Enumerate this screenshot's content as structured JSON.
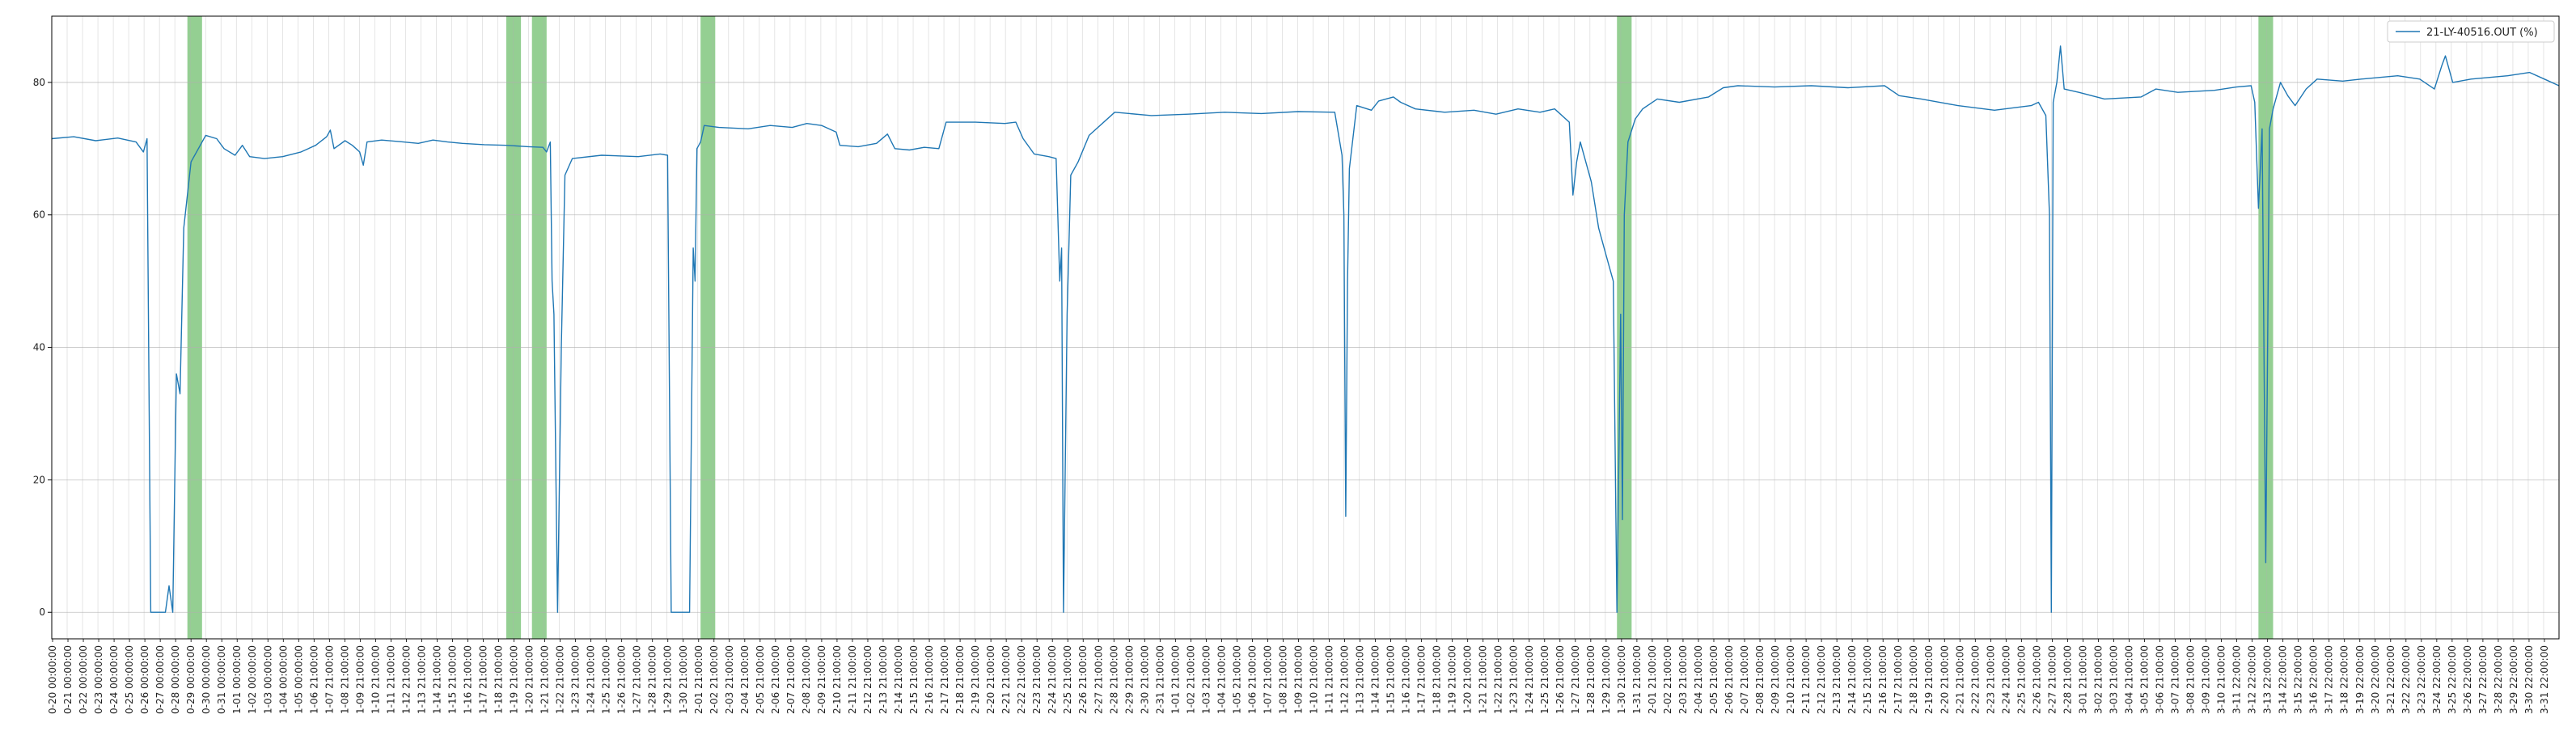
{
  "chart_data": {
    "type": "line",
    "title": "",
    "xlabel": "",
    "ylabel": "",
    "ylim": [
      -4,
      90
    ],
    "yticks": [
      0,
      20,
      40,
      60,
      80
    ],
    "grid": true,
    "legend_position": "top-right",
    "colors": {
      "line": "#1f77b4",
      "shade": "#4daf4a",
      "grid": "#b0b0b0",
      "axis": "#000000"
    },
    "series": [
      {
        "name": "21-LY-40516.OUT (%)",
        "points": [
          [
            0,
            71.5
          ],
          [
            6,
            71.8
          ],
          [
            12,
            71.2
          ],
          [
            18,
            71.6
          ],
          [
            23,
            71.0
          ],
          [
            25,
            69.5
          ],
          [
            26,
            71.5
          ],
          [
            27,
            0
          ],
          [
            31,
            0
          ],
          [
            32,
            4
          ],
          [
            33,
            0
          ],
          [
            34,
            36
          ],
          [
            35,
            33
          ],
          [
            36,
            58
          ],
          [
            38,
            68
          ],
          [
            40,
            70
          ],
          [
            42,
            72
          ],
          [
            45,
            71.5
          ],
          [
            47,
            70
          ],
          [
            50,
            69
          ],
          [
            52,
            70.5
          ],
          [
            54,
            68.8
          ],
          [
            58,
            68.5
          ],
          [
            63,
            68.8
          ],
          [
            68,
            69.5
          ],
          [
            72,
            70.5
          ],
          [
            75,
            71.8
          ],
          [
            76,
            72.8
          ],
          [
            77,
            70
          ],
          [
            80,
            71.2
          ],
          [
            82,
            70.5
          ],
          [
            84,
            69.5
          ],
          [
            85,
            67.5
          ],
          [
            86,
            71
          ],
          [
            90,
            71.3
          ],
          [
            96,
            71.0
          ],
          [
            100,
            70.8
          ],
          [
            104,
            71.3
          ],
          [
            108,
            71.0
          ],
          [
            112,
            70.8
          ],
          [
            118,
            70.6
          ],
          [
            124,
            70.5
          ],
          [
            130,
            70.3
          ],
          [
            134,
            70.2
          ],
          [
            135,
            69.5
          ],
          [
            136,
            71
          ],
          [
            136.5,
            50
          ],
          [
            137,
            45
          ],
          [
            138,
            0
          ],
          [
            139,
            40
          ],
          [
            140,
            66
          ],
          [
            142,
            68.5
          ],
          [
            150,
            69
          ],
          [
            160,
            68.8
          ],
          [
            166,
            69.2
          ],
          [
            168,
            69.0
          ],
          [
            169,
            0
          ],
          [
            174,
            0
          ],
          [
            175,
            55
          ],
          [
            175.5,
            50
          ],
          [
            176,
            70
          ],
          [
            177,
            71
          ],
          [
            178,
            73.5
          ],
          [
            182,
            73.2
          ],
          [
            190,
            73.0
          ],
          [
            196,
            73.5
          ],
          [
            202,
            73.2
          ],
          [
            206,
            73.8
          ],
          [
            210,
            73.5
          ],
          [
            214,
            72.5
          ],
          [
            215,
            70.5
          ],
          [
            220,
            70.3
          ],
          [
            225,
            70.8
          ],
          [
            228,
            72.2
          ],
          [
            230,
            70
          ],
          [
            234,
            69.8
          ],
          [
            238,
            70.2
          ],
          [
            242,
            70.0
          ],
          [
            244,
            74.0
          ],
          [
            252,
            74.0
          ],
          [
            260,
            73.8
          ],
          [
            263,
            74
          ],
          [
            265,
            71.5
          ],
          [
            268,
            69.2
          ],
          [
            272,
            68.8
          ],
          [
            274,
            68.5
          ],
          [
            275,
            50
          ],
          [
            275.5,
            55
          ],
          [
            276,
            0
          ],
          [
            277,
            45
          ],
          [
            278,
            66
          ],
          [
            280,
            68
          ],
          [
            283,
            72
          ],
          [
            290,
            75.5
          ],
          [
            300,
            75.0
          ],
          [
            310,
            75.2
          ],
          [
            320,
            75.5
          ],
          [
            330,
            75.3
          ],
          [
            340,
            75.6
          ],
          [
            350,
            75.5
          ],
          [
            352,
            69
          ],
          [
            352.5,
            60
          ],
          [
            353,
            14.5
          ],
          [
            353.5,
            50
          ],
          [
            354,
            67
          ],
          [
            356,
            76.5
          ],
          [
            360,
            75.8
          ],
          [
            362,
            77.2
          ],
          [
            366,
            77.8
          ],
          [
            368,
            77
          ],
          [
            372,
            76
          ],
          [
            380,
            75.5
          ],
          [
            388,
            75.8
          ],
          [
            394,
            75.2
          ],
          [
            400,
            76
          ],
          [
            406,
            75.5
          ],
          [
            410,
            76.0
          ],
          [
            414,
            74.0
          ],
          [
            415,
            63
          ],
          [
            416,
            68
          ],
          [
            417,
            71
          ],
          [
            420,
            65
          ],
          [
            422,
            58
          ],
          [
            424,
            54
          ],
          [
            426,
            50
          ],
          [
            427,
            0
          ],
          [
            428,
            45
          ],
          [
            428.5,
            14
          ],
          [
            429,
            60
          ],
          [
            430,
            71
          ],
          [
            432,
            74.5
          ],
          [
            434,
            76
          ],
          [
            438,
            77.5
          ],
          [
            444,
            77.0
          ],
          [
            452,
            77.8
          ],
          [
            456,
            79.2
          ],
          [
            460,
            79.5
          ],
          [
            470,
            79.3
          ],
          [
            480,
            79.5
          ],
          [
            490,
            79.2
          ],
          [
            500,
            79.5
          ],
          [
            504,
            78
          ],
          [
            510,
            77.5
          ],
          [
            520,
            76.5
          ],
          [
            530,
            75.8
          ],
          [
            540,
            76.5
          ],
          [
            542,
            77.0
          ],
          [
            544,
            75
          ],
          [
            545,
            60
          ],
          [
            545.5,
            0
          ],
          [
            546,
            77
          ],
          [
            547,
            80
          ],
          [
            548,
            85.5
          ],
          [
            549,
            79
          ],
          [
            553,
            78.5
          ],
          [
            560,
            77.5
          ],
          [
            570,
            77.8
          ],
          [
            574,
            79
          ],
          [
            580,
            78.5
          ],
          [
            590,
            78.8
          ],
          [
            596,
            79.3
          ],
          [
            600,
            79.5
          ],
          [
            601,
            77
          ],
          [
            602,
            61
          ],
          [
            603,
            73
          ],
          [
            604,
            7.5
          ],
          [
            605,
            73
          ],
          [
            606,
            76
          ],
          [
            608,
            80
          ],
          [
            610,
            78
          ],
          [
            612,
            76.5
          ],
          [
            615,
            79
          ],
          [
            618,
            80.5
          ],
          [
            625,
            80.2
          ],
          [
            630,
            80.5
          ],
          [
            640,
            81.0
          ],
          [
            646,
            80.5
          ],
          [
            650,
            79
          ],
          [
            652,
            82.5
          ],
          [
            653,
            84
          ],
          [
            655,
            80
          ],
          [
            660,
            80.5
          ],
          [
            670,
            81.0
          ],
          [
            676,
            81.5
          ],
          [
            680,
            80.5
          ],
          [
            684,
            79.5
          ]
        ]
      }
    ],
    "shaded_regions": [
      {
        "from": 37,
        "to": 41
      },
      {
        "from": 124,
        "to": 128
      },
      {
        "from": 131,
        "to": 135
      },
      {
        "from": 177,
        "to": 181
      },
      {
        "from": 427,
        "to": 431
      },
      {
        "from": 602,
        "to": 606
      }
    ],
    "x_range": [
      0,
      684
    ],
    "x_tick_labels": [
      "0-20 00:00:00",
      "0-21 00:00:00",
      "0-22 00:00:00",
      "0-23 00:00:00",
      "0-24 00:00:00",
      "0-25 00:00:00",
      "0-26 00:00:00",
      "0-27 00:00:00",
      "0-28 00:00:00",
      "0-29 00:00:00",
      "0-30 00:00:00",
      "0-31 00:00:00",
      "1-01 00:00:00",
      "1-02 00:00:00",
      "1-03 00:00:00",
      "1-04 00:00:00",
      "1-05 00:00:00",
      "1-06 21:00:00",
      "1-07 21:00:00",
      "1-08 21:00:00",
      "1-09 21:00:00",
      "1-10 21:00:00",
      "1-11 21:00:00",
      "1-12 21:00:00",
      "1-13 21:00:00",
      "1-14 21:00:00",
      "1-15 21:00:00",
      "1-16 21:00:00",
      "1-17 21:00:00",
      "1-18 21:00:00",
      "1-19 21:00:00",
      "1-20 21:00:00",
      "1-21 21:00:00",
      "1-22 21:00:00",
      "1-23 21:00:00",
      "1-24 21:00:00",
      "1-25 21:00:00",
      "1-26 21:00:00",
      "1-27 21:00:00",
      "1-28 21:00:00",
      "1-29 21:00:00",
      "1-30 21:00:00",
      "2-01 21:00:00",
      "2-02 21:00:00",
      "2-03 21:00:00",
      "2-04 21:00:00",
      "2-05 21:00:00",
      "2-06 21:00:00",
      "2-07 21:00:00",
      "2-08 21:00:00",
      "2-09 21:00:00",
      "2-10 21:00:00",
      "2-11 21:00:00",
      "2-12 21:00:00",
      "2-13 21:00:00",
      "2-14 21:00:00",
      "2-15 21:00:00",
      "2-16 21:00:00",
      "2-17 21:00:00",
      "2-18 21:00:00",
      "2-19 21:00:00",
      "2-20 21:00:00",
      "2-21 21:00:00",
      "2-22 21:00:00",
      "2-23 21:00:00",
      "2-24 21:00:00",
      "2-25 21:00:00",
      "2-26 21:00:00",
      "2-27 21:00:00",
      "2-28 21:00:00",
      "2-29 21:00:00",
      "2-30 21:00:00",
      "2-31 21:00:00",
      "1-01 21:00:00",
      "1-02 21:00:00",
      "1-03 21:00:00",
      "1-04 21:00:00",
      "1-05 21:00:00",
      "1-06 21:00:00",
      "1-07 21:00:00",
      "1-08 21:00:00",
      "1-09 21:00:00",
      "1-10 21:00:00",
      "1-11 21:00:00",
      "1-12 21:00:00",
      "1-13 21:00:00",
      "1-14 21:00:00",
      "1-15 21:00:00",
      "1-16 21:00:00",
      "1-17 21:00:00",
      "1-18 21:00:00",
      "1-19 21:00:00",
      "1-20 21:00:00",
      "1-21 21:00:00",
      "1-22 21:00:00",
      "1-23 21:00:00",
      "1-24 21:00:00",
      "1-25 21:00:00",
      "1-26 21:00:00",
      "1-27 21:00:00",
      "1-28 21:00:00",
      "1-29 21:00:00",
      "1-30 21:00:00",
      "1-31 21:00:00",
      "2-01 21:00:00",
      "2-02 21:00:00",
      "2-03 21:00:00",
      "2-04 21:00:00",
      "2-05 21:00:00",
      "2-06 21:00:00",
      "2-07 21:00:00",
      "2-08 21:00:00",
      "2-09 21:00:00",
      "2-10 21:00:00",
      "2-11 21:00:00",
      "2-12 21:00:00",
      "2-13 21:00:00",
      "2-14 21:00:00",
      "2-15 21:00:00",
      "2-16 21:00:00",
      "2-17 21:00:00",
      "2-18 21:00:00",
      "2-19 21:00:00",
      "2-20 21:00:00",
      "2-21 21:00:00",
      "2-22 21:00:00",
      "2-23 21:00:00",
      "2-24 21:00:00",
      "2-25 21:00:00",
      "2-26 21:00:00",
      "2-27 21:00:00",
      "2-28 21:00:00",
      "3-01 21:00:00",
      "3-02 21:00:00",
      "3-03 21:00:00",
      "3-04 21:00:00",
      "3-05 21:00:00",
      "3-06 21:00:00",
      "3-07 21:00:00",
      "3-08 21:00:00",
      "3-09 21:00:00",
      "3-10 21:00:00",
      "3-11 22:00:00",
      "3-12 22:00:00",
      "3-13 22:00:00",
      "3-14 22:00:00",
      "3-15 22:00:00",
      "3-16 22:00:00",
      "3-17 22:00:00",
      "3-18 22:00:00",
      "3-19 22:00:00",
      "3-20 22:00:00",
      "3-21 22:00:00",
      "3-22 22:00:00",
      "3-23 22:00:00",
      "3-24 22:00:00",
      "3-25 22:00:00",
      "3-26 22:00:00",
      "3-27 22:00:00",
      "3-28 22:00:00",
      "3-29 22:00:00",
      "3-30 22:00:00",
      "3-31 22:00:00"
    ]
  }
}
